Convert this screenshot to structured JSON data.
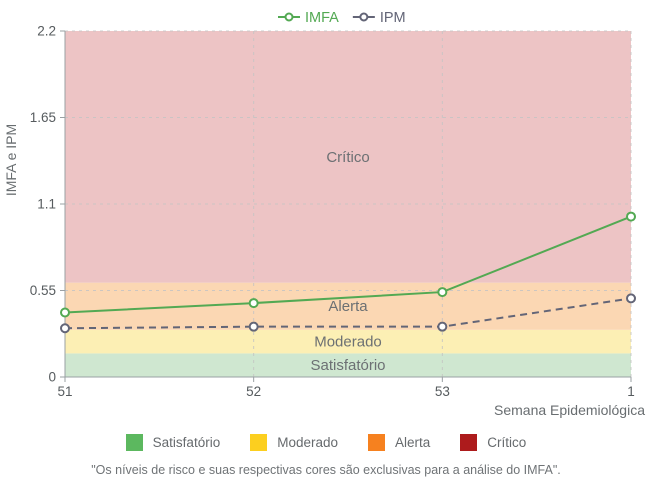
{
  "chart_data": {
    "type": "line",
    "xlabel": "Semana Epidemiológica",
    "ylabel": "IMFA e IPM",
    "x_categories": [
      "51",
      "52",
      "53",
      "1"
    ],
    "y_ticks": [
      "0",
      "0.55",
      "1.1",
      "1.65",
      "2.2"
    ],
    "ylim": [
      0,
      2.2
    ],
    "grid": true,
    "legend_position": "top",
    "series": [
      {
        "name": "IMFA",
        "color": "#53a953",
        "style": "solid",
        "values": [
          0.41,
          0.47,
          0.54,
          1.02
        ]
      },
      {
        "name": "IPM",
        "color": "#636577",
        "style": "dashed",
        "values": [
          0.31,
          0.32,
          0.32,
          0.5
        ]
      }
    ],
    "risk_zones": [
      {
        "label": "Satisfatório",
        "from": 0,
        "to": 0.15,
        "band_color": "#cfe7d0",
        "legend_color": "#5cb85f"
      },
      {
        "label": "Moderado",
        "from": 0.15,
        "to": 0.3,
        "band_color": "#fcefb4",
        "legend_color": "#fccf1f"
      },
      {
        "label": "Alerta",
        "from": 0.3,
        "to": 0.6,
        "band_color": "#fbd7b3",
        "legend_color": "#f6811f"
      },
      {
        "label": "Crítico",
        "from": 0.6,
        "to": 2.2,
        "band_color": "#edc4c5",
        "legend_color": "#ad1b1c"
      }
    ]
  },
  "colors": {
    "axis": "#9aa0a3",
    "grid": "#c4c4c4",
    "tick_text": "#565b5e",
    "axis_title_text": "#686d70",
    "zone_label_text": "#6c7073"
  },
  "footer": {
    "note": "\"Os níveis de risco e suas respectivas cores são exclusivas para a análise do IMFA\"."
  }
}
